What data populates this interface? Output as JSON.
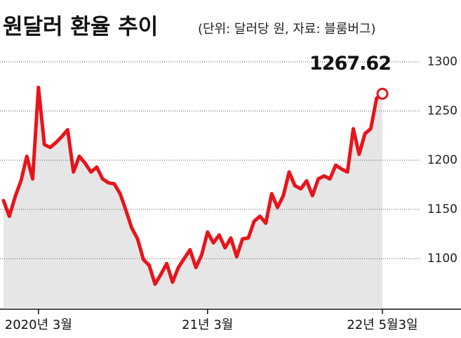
{
  "chart_data": {
    "type": "area-line",
    "title": "원달러 환율 추이",
    "subtitle": "(단위: 달러당 원, 자료: 블룸버그)",
    "categories": [
      null,
      null,
      null,
      null,
      null,
      null,
      "2020년 3월",
      null,
      null,
      null,
      null,
      null,
      null,
      null,
      null,
      null,
      null,
      null,
      null,
      null,
      null,
      null,
      null,
      null,
      null,
      null,
      null,
      null,
      null,
      null,
      null,
      null,
      null,
      null,
      null,
      "21년 3월",
      null,
      null,
      null,
      null,
      null,
      null,
      null,
      null,
      null,
      null,
      null,
      null,
      null,
      null,
      null,
      null,
      null,
      null,
      null,
      null,
      null,
      null,
      null,
      null,
      null,
      null,
      null,
      null,
      null,
      "22년 5월3일"
    ],
    "values": [
      1159,
      1143,
      1163,
      1179,
      1204,
      1181,
      1274,
      1216,
      1213,
      1218,
      1224,
      1231,
      1188,
      1204,
      1197,
      1188,
      1193,
      1181,
      1177,
      1176,
      1166,
      1149,
      1131,
      1120,
      1099,
      1093,
      1074,
      1084,
      1095,
      1076,
      1091,
      1100,
      1109,
      1091,
      1104,
      1127,
      1116,
      1124,
      1111,
      1121,
      1102,
      1120,
      1121,
      1138,
      1143,
      1136,
      1166,
      1152,
      1164,
      1188,
      1174,
      1171,
      1179,
      1164,
      1181,
      1184,
      1181,
      1195,
      1191,
      1188,
      1232,
      1206,
      1227,
      1232,
      1263,
      1267.62
    ],
    "color": "#e8141b",
    "area_color": "#e6e6e6",
    "ylim": [
      1050,
      1310
    ],
    "yticks": [
      1100,
      1150,
      1200,
      1250,
      1300
    ],
    "grid": true
  }
}
